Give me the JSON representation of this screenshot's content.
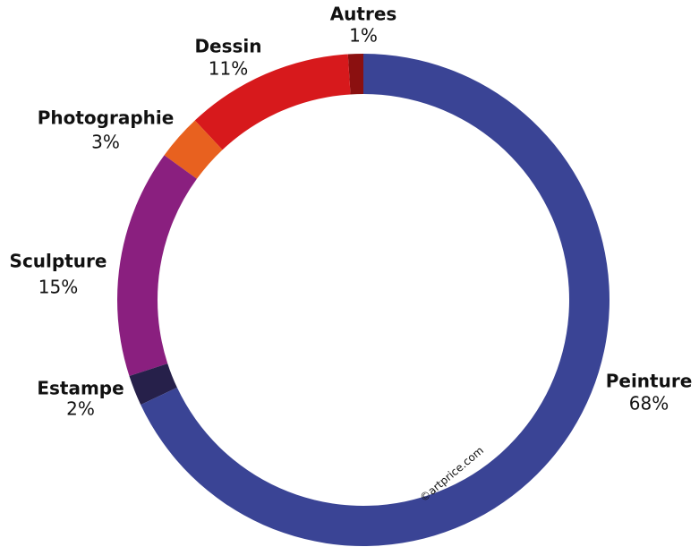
{
  "chart_data": {
    "type": "donut",
    "categories": [
      "Peinture",
      "Estampe",
      "Sculpture",
      "Photographie",
      "Dessin",
      "Autres"
    ],
    "values": [
      68,
      2,
      15,
      3,
      11,
      1
    ],
    "value_labels": [
      "68%",
      "2%",
      "15%",
      "3%",
      "11%",
      "1%"
    ],
    "colors": [
      "#3a4495",
      "#26204a",
      "#8a1f7f",
      "#e8611f",
      "#d7191c",
      "#8b1010"
    ],
    "watermark": "©artprice.com"
  }
}
